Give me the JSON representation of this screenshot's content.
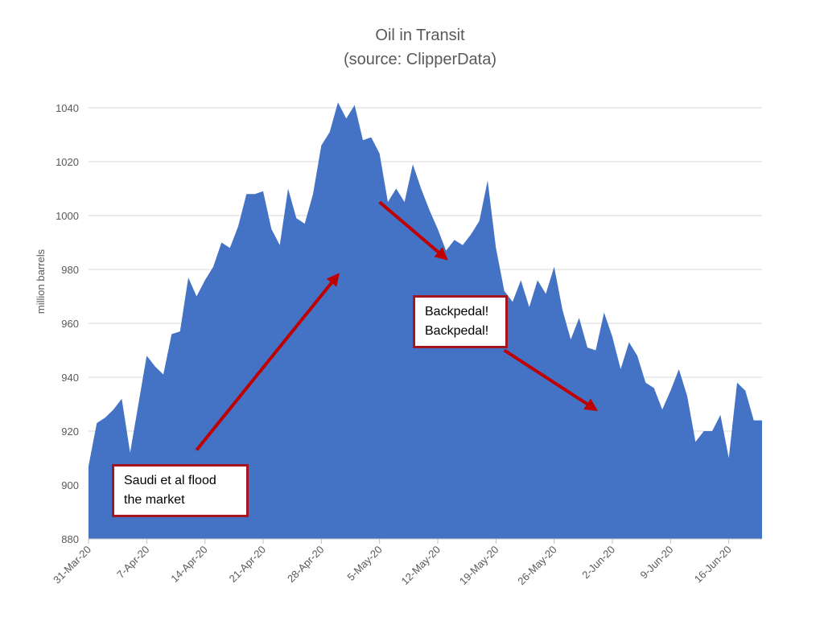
{
  "chart_data": {
    "type": "area",
    "title": "Oil in Transit",
    "subtitle": "(source: ClipperData)",
    "ylabel": "million barrels",
    "xlabel": "",
    "ylim": [
      880,
      1040
    ],
    "yticks": [
      880,
      900,
      920,
      940,
      960,
      980,
      1000,
      1020,
      1040
    ],
    "xlim": [
      "2020-03-31",
      "2020-06-20"
    ],
    "xticks": [
      "31-Mar-20",
      "7-Apr-20",
      "14-Apr-20",
      "21-Apr-20",
      "28-Apr-20",
      "5-May-20",
      "12-May-20",
      "19-May-20",
      "26-May-20",
      "2-Jun-20",
      "9-Jun-20",
      "16-Jun-20"
    ],
    "grid": true,
    "legend": "none",
    "color": "#4472c4",
    "series": [
      {
        "x": [
          "2020-03-31",
          "2020-04-01",
          "2020-04-02",
          "2020-04-03",
          "2020-04-04",
          "2020-04-05",
          "2020-04-06",
          "2020-04-07",
          "2020-04-08",
          "2020-04-09",
          "2020-04-10",
          "2020-04-11",
          "2020-04-12",
          "2020-04-13",
          "2020-04-14",
          "2020-04-15",
          "2020-04-16",
          "2020-04-17",
          "2020-04-18",
          "2020-04-19",
          "2020-04-20",
          "2020-04-21",
          "2020-04-22",
          "2020-04-23",
          "2020-04-24",
          "2020-04-25",
          "2020-04-26",
          "2020-04-27",
          "2020-04-28",
          "2020-04-29",
          "2020-04-30",
          "2020-05-01",
          "2020-05-02",
          "2020-05-03",
          "2020-05-04",
          "2020-05-05",
          "2020-05-06",
          "2020-05-07",
          "2020-05-08",
          "2020-05-09",
          "2020-05-10",
          "2020-05-11",
          "2020-05-12",
          "2020-05-13",
          "2020-05-14",
          "2020-05-15",
          "2020-05-16",
          "2020-05-17",
          "2020-05-18",
          "2020-05-19",
          "2020-05-20",
          "2020-05-21",
          "2020-05-22",
          "2020-05-23",
          "2020-05-24",
          "2020-05-25",
          "2020-05-26",
          "2020-05-27",
          "2020-05-28",
          "2020-05-29",
          "2020-05-30",
          "2020-05-31",
          "2020-06-01",
          "2020-06-02",
          "2020-06-03",
          "2020-06-04",
          "2020-06-05",
          "2020-06-06",
          "2020-06-07",
          "2020-06-08",
          "2020-06-09",
          "2020-06-10",
          "2020-06-11",
          "2020-06-12",
          "2020-06-13",
          "2020-06-14",
          "2020-06-15",
          "2020-06-16",
          "2020-06-17",
          "2020-06-18",
          "2020-06-19",
          "2020-06-20"
        ],
        "values": [
          907,
          923,
          925,
          928,
          932,
          912,
          930,
          948,
          944,
          941,
          956,
          957,
          977,
          970,
          976,
          981,
          990,
          988,
          996,
          1008,
          1008,
          1009,
          995,
          989,
          1010,
          999,
          997,
          1008,
          1026,
          1031,
          1042,
          1036,
          1041,
          1028,
          1029,
          1023,
          1005,
          1010,
          1005,
          1019,
          1010,
          1002,
          995,
          987,
          991,
          989,
          993,
          998,
          1013,
          988,
          972,
          968,
          976,
          966,
          976,
          971,
          981,
          965,
          954,
          962,
          951,
          950,
          964,
          955,
          943,
          953,
          948,
          938,
          936,
          928,
          935,
          943,
          933,
          916,
          920,
          920,
          926,
          910,
          938,
          935,
          924,
          924
        ]
      }
    ],
    "annotations": [
      {
        "text": [
          "Saudi et al flood",
          "the market"
        ]
      },
      {
        "text": [
          "Backpedal!",
          "Backpedal!"
        ]
      }
    ],
    "arrows": [
      {
        "from": [
          "2020-04-13",
          913
        ],
        "to": [
          "2020-04-30",
          978
        ],
        "color": "#c00000"
      },
      {
        "from": [
          "2020-05-05",
          1005
        ],
        "to": [
          "2020-05-13",
          984
        ],
        "color": "#c00000"
      },
      {
        "from": [
          "2020-05-20",
          950
        ],
        "to": [
          "2020-05-31",
          928
        ],
        "color": "#c00000"
      }
    ]
  }
}
